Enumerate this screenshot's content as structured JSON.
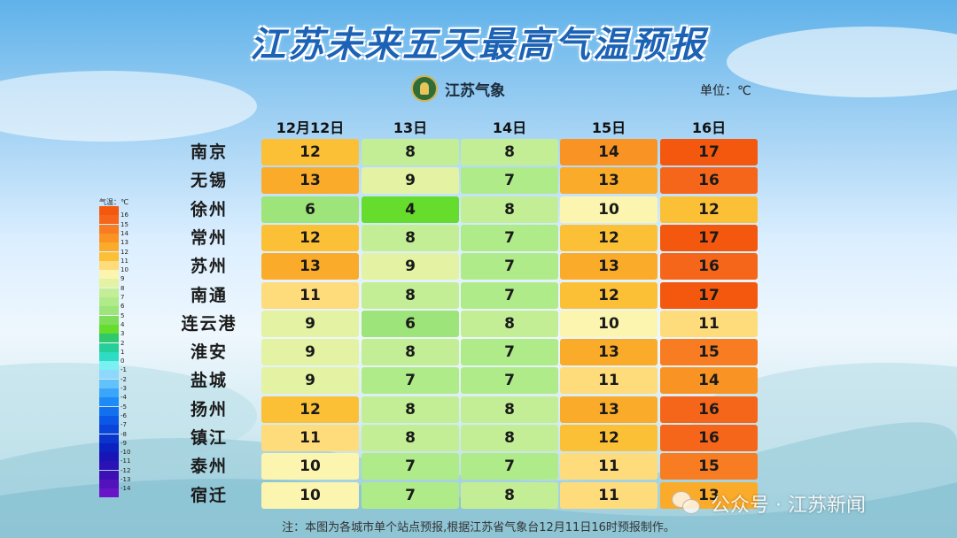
{
  "title": "江苏未来五天最高气温预报",
  "logo_text": "江苏气象",
  "unit_label": "单位：℃",
  "note": "注：本图为各城市单个站点预报,根据江苏省气象台12月11日16时预报制作。",
  "watermark": "公众号 · 江苏新闻",
  "chart_data": {
    "type": "table",
    "columns": [
      "12月12日",
      "13日",
      "14日",
      "15日",
      "16日"
    ],
    "rows": [
      {
        "city": "南京",
        "values": [
          12,
          8,
          8,
          14,
          17
        ]
      },
      {
        "city": "无锡",
        "values": [
          13,
          9,
          7,
          13,
          16
        ]
      },
      {
        "city": "徐州",
        "values": [
          6,
          4,
          8,
          10,
          12
        ]
      },
      {
        "city": "常州",
        "values": [
          12,
          8,
          7,
          12,
          17
        ]
      },
      {
        "city": "苏州",
        "values": [
          13,
          9,
          7,
          13,
          16
        ]
      },
      {
        "city": "南通",
        "values": [
          11,
          8,
          7,
          12,
          17
        ]
      },
      {
        "city": "连云港",
        "values": [
          9,
          6,
          8,
          10,
          11
        ]
      },
      {
        "city": "淮安",
        "values": [
          9,
          8,
          7,
          13,
          15
        ]
      },
      {
        "city": "盐城",
        "values": [
          9,
          7,
          7,
          11,
          14
        ]
      },
      {
        "city": "扬州",
        "values": [
          12,
          8,
          8,
          13,
          16
        ]
      },
      {
        "city": "镇江",
        "values": [
          11,
          8,
          8,
          12,
          16
        ]
      },
      {
        "city": "泰州",
        "values": [
          10,
          7,
          7,
          11,
          15
        ]
      },
      {
        "city": "宿迁",
        "values": [
          10,
          7,
          8,
          11,
          13
        ]
      }
    ],
    "legend": {
      "title": "气温：℃",
      "labels": [
        "16",
        "15",
        "14",
        "13",
        "12",
        "11",
        "10",
        "9",
        "8",
        "7",
        "6",
        "5",
        "4",
        "3",
        "2",
        "1",
        "0",
        "-1",
        "-2",
        "-3",
        "-4",
        "-5",
        "-6",
        "-7",
        "-8",
        "-9",
        "-10",
        "-11",
        "-12",
        "-13",
        "-14"
      ]
    },
    "colors": {
      "17": "#f4580f",
      "16": "#f6661a",
      "15": "#f77c22",
      "14": "#f99424",
      "13": "#fbab2a",
      "12": "#fcc037",
      "11": "#fedc7c",
      "10": "#fbf5b0",
      "9": "#e3f3a3",
      "8": "#c4ee96",
      "7": "#b0eb8a",
      "6": "#9de47a",
      "5": "#7ede5a",
      "4": "#66dc2c",
      "3": "#2fc86c",
      "2": "#26cf9a",
      "1": "#2edcc4",
      "0": "#7af0f2",
      "-1": "#8ed8fb",
      "-2": "#62c2fb",
      "-3": "#3aa6f9",
      "-4": "#1e8af5",
      "-5": "#1270ef",
      "-6": "#0c58e6",
      "-7": "#0a44da",
      "-8": "#0a34cc",
      "-9": "#0c22c0",
      "-10": "#1814b8",
      "-11": "#2a12b4",
      "-12": "#3c10b4",
      "-13": "#5212bc",
      "-14": "#6a14c8"
    }
  }
}
